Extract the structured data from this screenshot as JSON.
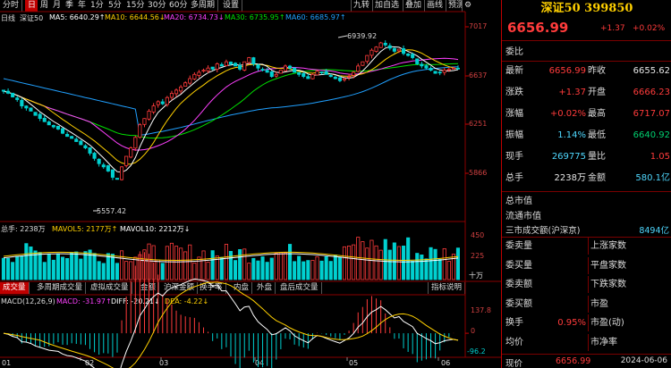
{
  "toolbar": {
    "tabs": [
      "分时",
      "日",
      "周",
      "月",
      "季",
      "年",
      "1分",
      "5分",
      "15分",
      "30分",
      "60分",
      "多周期",
      "设置"
    ],
    "active": 1,
    "right_tabs": [
      "九转",
      "加自选",
      "叠加",
      "画线",
      "预测"
    ]
  },
  "ma_line": {
    "mode": "日线",
    "name": "深证50",
    "ma5": "MA5: 6640.29↑",
    "ma10": "MA10: 6644.56↓",
    "ma20": "MA20: 6734.73↓",
    "ma30": "MA30: 6735.95↑",
    "ma60": "MA60: 6685.97↑"
  },
  "price_axis": [
    "7017",
    "6637",
    "6251",
    "5866"
  ],
  "annotations": {
    "high": "6939.92",
    "low": "5557.42"
  },
  "volume_line": {
    "total": "总手: 2238万",
    "mavol5": "MAVOL5: 2177万↑",
    "mavol10": "MAVOL10: 2212万↓",
    "axis": [
      "450",
      "225",
      "十万"
    ]
  },
  "bottom_tabs": [
    "成交量",
    "多周期成交量",
    "虚拟成交量",
    "金额",
    "沪深金额",
    "换手率",
    "内盘",
    "外盘",
    "盘后成交量"
  ],
  "bottom_right_tab": "指标说明",
  "macd_line": {
    "name": "MACD(12,26,9)",
    "macd": "MACD: -31.97↑",
    "diff": "DIFF: -20.21↓",
    "dea": "DEA: -4.22↓",
    "axis": [
      "137.8",
      "0",
      "-96.2"
    ]
  },
  "x_axis": [
    "01",
    "02",
    "03",
    "04",
    "05",
    "06"
  ],
  "colors": {
    "up": "#ff3b3b",
    "down": "#00d0d0",
    "ma5": "#ffffff",
    "ma10": "#ffd000",
    "ma20": "#ff40ff",
    "ma30": "#00e000",
    "ma60": "#20a0ff"
  },
  "chart_data": {
    "type": "candlestick",
    "note": "approximate daily K-line series, Jan–Jun 2024",
    "y_range": [
      5480,
      7070
    ],
    "closes": [
      6440,
      6420,
      6385,
      6360,
      6300,
      6280,
      6250,
      6210,
      6180,
      6150,
      6120,
      6100,
      6080,
      6040,
      6010,
      5990,
      5960,
      5930,
      5900,
      5850,
      5800,
      5750,
      5720,
      5680,
      5620,
      5600,
      5720,
      5820,
      5900,
      6000,
      6120,
      6180,
      6250,
      6300,
      6340,
      6320,
      6380,
      6420,
      6450,
      6480,
      6520,
      6560,
      6600,
      6620,
      6640,
      6660,
      6650,
      6700,
      6680,
      6720,
      6700,
      6680,
      6650,
      6720,
      6760,
      6700,
      6660,
      6640,
      6620,
      6580,
      6600,
      6640,
      6680,
      6660,
      6620,
      6600,
      6580,
      6560,
      6600,
      6630,
      6620,
      6600,
      6580,
      6560,
      6540,
      6560,
      6580,
      6620,
      6680,
      6720,
      6780,
      6830,
      6860,
      6900,
      6880,
      6850,
      6820,
      6840,
      6800,
      6780,
      6760,
      6700,
      6680,
      6660,
      6640,
      6610,
      6620,
      6640,
      6650,
      6660,
      6656
    ],
    "volume_max": 450,
    "macd_range": [
      -96.2,
      137.8
    ]
  },
  "quote": {
    "name": "深证50 399850",
    "price": "6656.99",
    "change": "+1.37",
    "pct": "+0.02%",
    "weibi_label": "委比",
    "rows": [
      {
        "k": "最新",
        "v": "6656.99",
        "vc": "red",
        "k2": "昨收",
        "v2": "6655.62",
        "v2c": "white"
      },
      {
        "k": "涨跌",
        "v": "+1.37",
        "vc": "red",
        "k2": "开盘",
        "v2": "6666.23",
        "v2c": "red"
      },
      {
        "k": "涨幅",
        "v": "+0.02%",
        "vc": "red",
        "k2": "最高",
        "v2": "6717.07",
        "v2c": "red"
      },
      {
        "k": "振幅",
        "v": "1.14%",
        "vc": "cyan",
        "k2": "最低",
        "v2": "6640.92",
        "v2c": "green"
      },
      {
        "k": "现手",
        "v": "269775",
        "vc": "cyan",
        "k2": "量比",
        "v2": "1.05",
        "v2c": "red"
      },
      {
        "k": "总手",
        "v": "2238万",
        "vc": "white",
        "k2": "金额",
        "v2": "580.1亿",
        "v2c": "cyan"
      }
    ],
    "total_cap": "总市值",
    "float_cap": "流通市值",
    "turnover_label": "三市成交额(沪深京)",
    "turnover_value": "8494亿",
    "bottom_rows": [
      {
        "k": "委卖量",
        "k2": "上涨家数"
      },
      {
        "k": "委买量",
        "k2": "平盘家数"
      },
      {
        "k": "委卖额",
        "k2": "下跌家数"
      },
      {
        "k": "委买额",
        "k2": "市盈"
      },
      {
        "k": "换手",
        "v": "0.95%",
        "k2": "市盈(动)"
      },
      {
        "k": "均价",
        "k2": "市净率"
      }
    ],
    "footer_label": "现价",
    "footer_price": "6656.99",
    "footer_date": "2024-06-06"
  }
}
